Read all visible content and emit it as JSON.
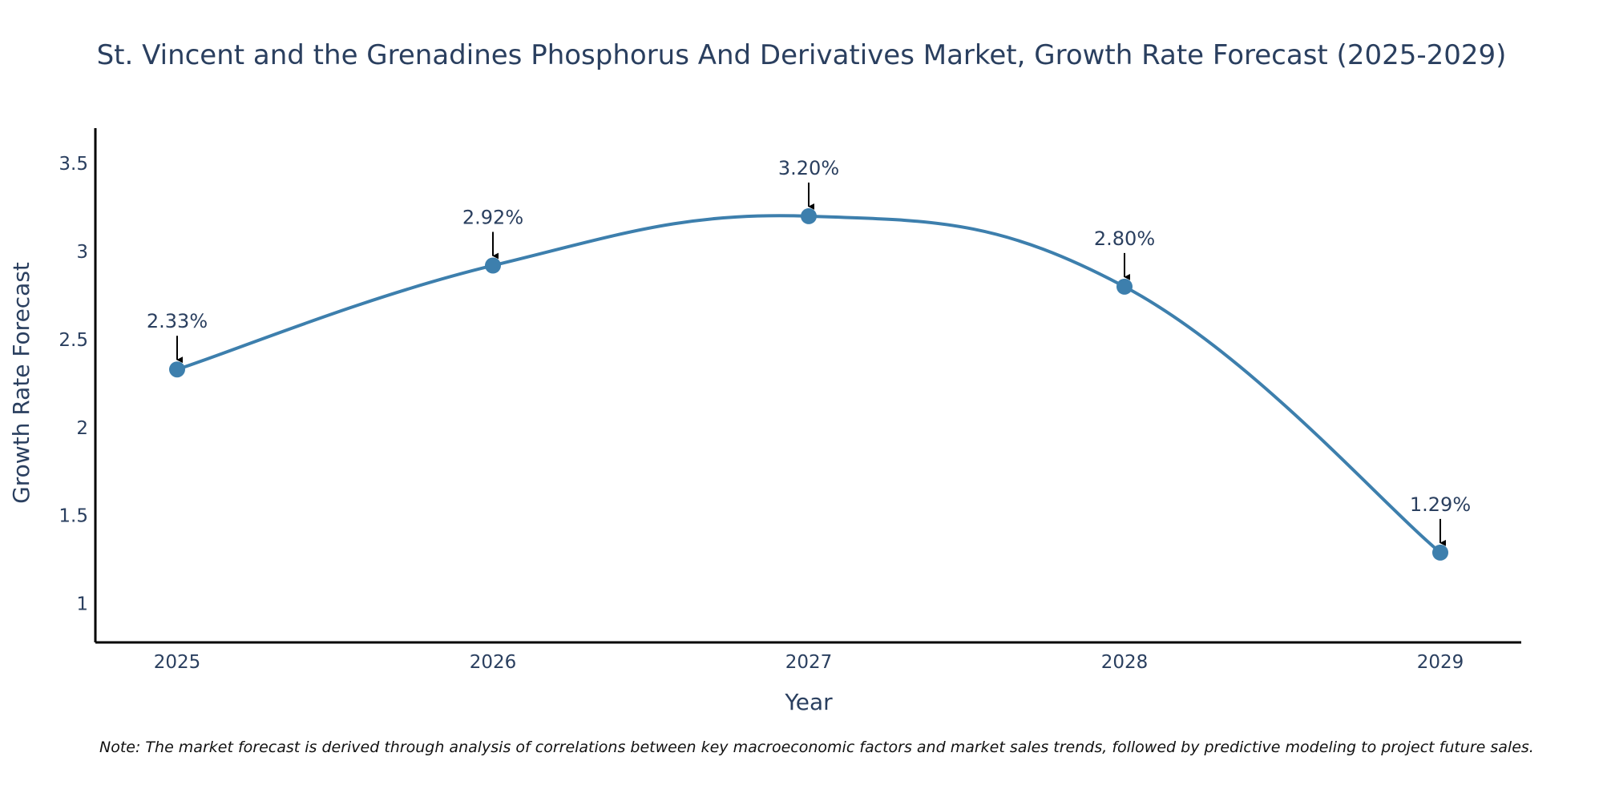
{
  "colors": {
    "line": "#3d7fad",
    "marker": "#3d7fad",
    "axis": "#000000",
    "text": "#2a3f5f",
    "arrow": "#000000"
  },
  "note": "Note: The market forecast is derived through analysis of correlations between key macroeconomic factors and market sales trends, followed by predictive modeling to project future sales.",
  "chart_data": {
    "type": "line",
    "title": "St. Vincent and the Grenadines Phosphorus And Derivatives Market, Growth Rate Forecast (2025-2029)",
    "xlabel": "Year",
    "ylabel": "Growth Rate Forecast",
    "categories": [
      "2025",
      "2026",
      "2027",
      "2028",
      "2029"
    ],
    "values": [
      2.33,
      2.92,
      3.2,
      2.8,
      1.29
    ],
    "data_labels": [
      "2.33%",
      "2.92%",
      "3.20%",
      "2.80%",
      "1.29%"
    ],
    "y_ticks": [
      1,
      1.5,
      2,
      2.5,
      3,
      3.5
    ],
    "y_tick_labels": [
      "1",
      "1.5",
      "2",
      "2.5",
      "3",
      "3.5"
    ],
    "ylim": [
      0.78,
      3.7
    ],
    "grid": false,
    "line_shape": "spline",
    "markers": true,
    "annotation_arrows": true
  }
}
